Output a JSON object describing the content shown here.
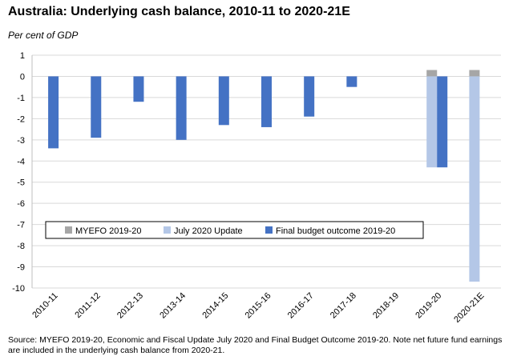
{
  "chart_data": {
    "type": "bar",
    "title": "Australia: Underlying cash balance, 2010-11 to 2020-21E",
    "ylabel": "Per cent of GDP",
    "xlabel": "",
    "categories": [
      "2010-11",
      "2011-12",
      "2012-13",
      "2013-14",
      "2014-15",
      "2015-16",
      "2016-17",
      "2017-18",
      "2018-19",
      "2019-20",
      "2020-21E"
    ],
    "ylim": [
      -10,
      1
    ],
    "yticks": [
      1,
      0,
      -1,
      -2,
      -3,
      -4,
      -5,
      -6,
      -7,
      -8,
      -9,
      -10
    ],
    "grid": true,
    "legend_position": "lower-left",
    "series": [
      {
        "name": "MYEFO 2019-20",
        "color": "#a6a6a6",
        "values": [
          null,
          null,
          null,
          null,
          null,
          null,
          null,
          null,
          null,
          0.3,
          0.3
        ]
      },
      {
        "name": "July 2020 Update",
        "color": "#b4c7e7",
        "values": [
          null,
          null,
          null,
          null,
          null,
          null,
          null,
          null,
          null,
          -4.3,
          -9.7
        ]
      },
      {
        "name": "Final budget outcome 2019-20",
        "color": "#4472c4",
        "values": [
          -3.4,
          -2.9,
          -1.2,
          -3.0,
          -2.3,
          -2.4,
          -1.9,
          -0.5,
          0.0,
          -4.3,
          null
        ]
      }
    ]
  },
  "source_note": "Source: MYEFO 2019-20,  Economic and Fiscal Update July 2020 and Final Budget Outcome 2019-20.  Note net future fund earnings are included in the underlying cash balance from 2020-21."
}
